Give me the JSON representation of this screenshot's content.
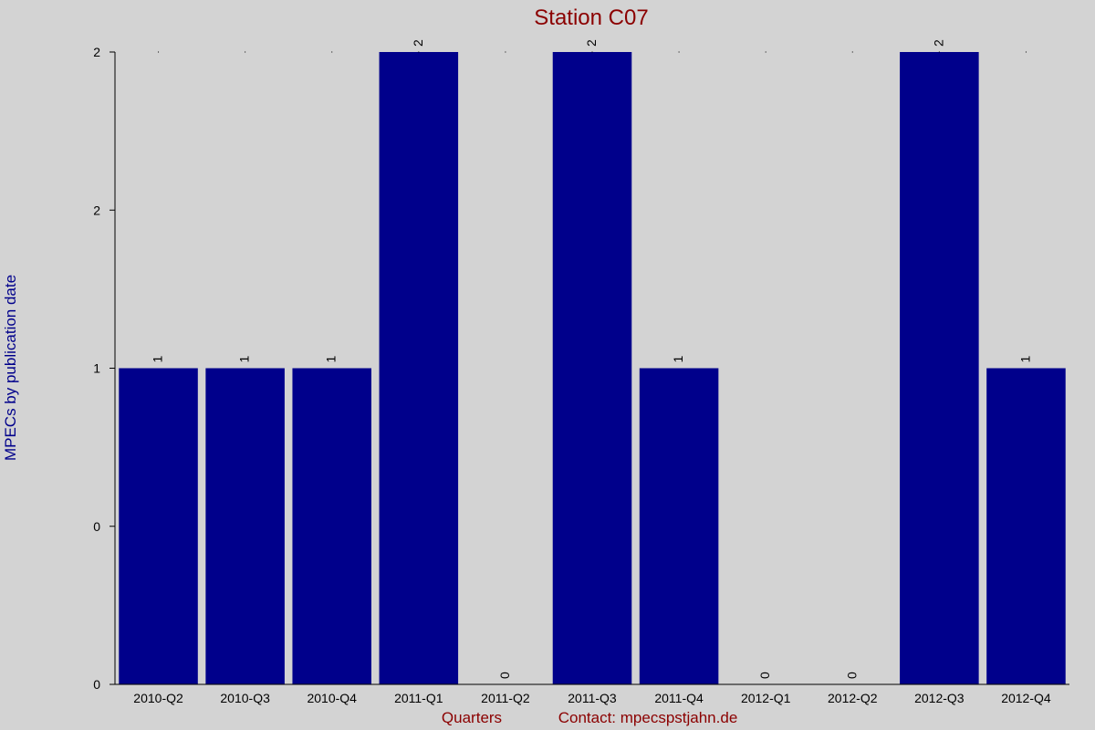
{
  "chart_data": {
    "type": "bar",
    "title": "Station C07",
    "xlabel": "Quarters",
    "ylabel": "MPECs by publication date",
    "footer_contact": "Contact: mpecspstjahn.de",
    "categories": [
      "2010-Q2",
      "2010-Q3",
      "2010-Q4",
      "2011-Q1",
      "2011-Q2",
      "2011-Q3",
      "2011-Q4",
      "2012-Q1",
      "2012-Q2",
      "2012-Q3",
      "2012-Q4"
    ],
    "values": [
      1,
      1,
      1,
      2,
      0,
      2,
      1,
      0,
      0,
      2,
      1
    ],
    "data_labels": [
      "1",
      "1",
      "1",
      "2",
      "0",
      "2",
      "1",
      "0",
      "0",
      "2",
      "1"
    ],
    "ylim": [
      0,
      2
    ],
    "y_ticks": [
      0,
      0.5,
      1,
      1.5,
      2
    ],
    "y_tick_labels": [
      "0",
      "0",
      "1",
      "2",
      "2"
    ],
    "grid": false,
    "legend": "none",
    "colors": {
      "background": "#d3d3d3",
      "bar": "#00008b",
      "title": "#8b0000",
      "ylabel": "#00008b",
      "xlabel": "#8b0000",
      "axis": "#000000",
      "text": "#000000"
    }
  }
}
